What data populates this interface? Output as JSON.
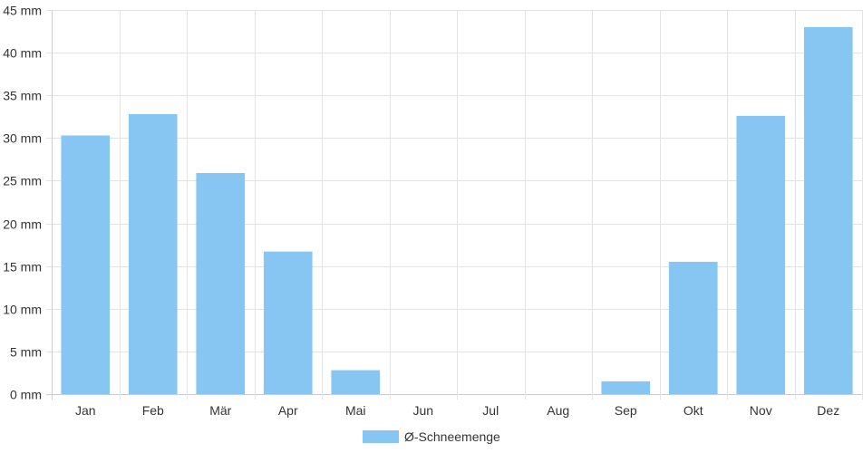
{
  "chart_data": {
    "type": "bar",
    "categories": [
      "Jan",
      "Feb",
      "Mär",
      "Apr",
      "Mai",
      "Jun",
      "Jul",
      "Aug",
      "Sep",
      "Okt",
      "Nov",
      "Dez"
    ],
    "series": [
      {
        "name": "Ø-Schneemenge",
        "values": [
          30.3,
          32.8,
          25.9,
          16.7,
          2.8,
          0,
          0,
          0,
          1.5,
          15.5,
          32.6,
          43.0
        ]
      }
    ],
    "ylim": [
      0,
      45
    ],
    "y_ticks": [
      0,
      5,
      10,
      15,
      20,
      25,
      30,
      35,
      40,
      45
    ],
    "y_tick_labels": [
      "0 mm",
      "5 mm",
      "10 mm",
      "15 mm",
      "20 mm",
      "25 mm",
      "30 mm",
      "35 mm",
      "40 mm",
      "45 mm"
    ],
    "grid": true,
    "legend_position": "bottom",
    "colors": {
      "bar": "#87c6f2",
      "grid": "#e3e3e3",
      "axis": "#cccccc"
    }
  }
}
